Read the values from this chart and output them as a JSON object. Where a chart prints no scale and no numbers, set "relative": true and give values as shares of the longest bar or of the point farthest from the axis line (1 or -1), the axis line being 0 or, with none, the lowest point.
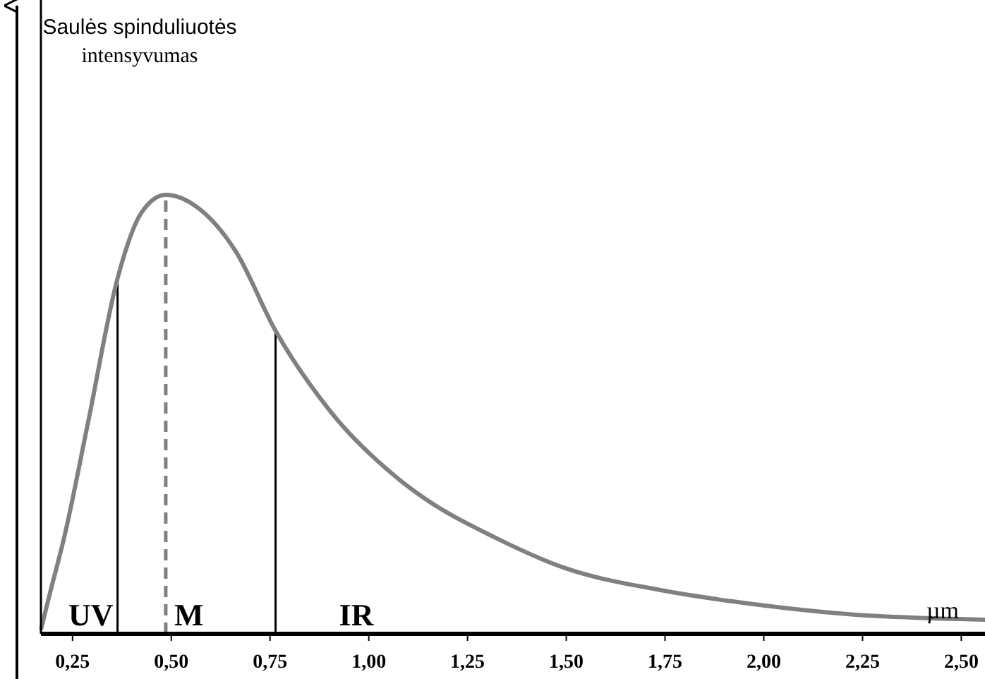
{
  "chart_data": {
    "type": "line",
    "xlabel": "µm",
    "relative": true,
    "xlim": [
      0.17,
      2.56
    ],
    "xticks": [
      {
        "value": 0.25,
        "label": "0,25"
      },
      {
        "value": 0.5,
        "label": "0,50"
      },
      {
        "value": 0.75,
        "label": "0,75"
      },
      {
        "value": 1,
        "label": "1,00"
      },
      {
        "value": 1.25,
        "label": "1,25"
      },
      {
        "value": 1.5,
        "label": "1,50"
      },
      {
        "value": 1.75,
        "label": "1,75"
      },
      {
        "value": 2,
        "label": "2,00"
      },
      {
        "value": 2.25,
        "label": "2,25"
      },
      {
        "value": 2.5,
        "label": "2,50"
      }
    ],
    "x": [
      0.171,
      0.193,
      0.229,
      0.289,
      0.364,
      0.425,
      0.486,
      0.568,
      0.664,
      0.764,
      0.9,
      1.079,
      1.139,
      1.318,
      1.496,
      1.736,
      1.971,
      2.211,
      2.56
    ],
    "series": [
      {
        "color": "#808080",
        "values": [
          0.013,
          0.093,
          0.22,
          0.48,
          0.81,
          0.96,
          1,
          0.97,
          0.87,
          0.69,
          0.51,
          0.35,
          0.31,
          0.22,
          0.15,
          0.1,
          0.068,
          0.045,
          0.032
        ]
      }
    ],
    "ref_lines": [
      {
        "axis": "x",
        "value": 0.364,
        "color": "#000000",
        "line_style": "solid"
      },
      {
        "axis": "x",
        "value": 0.486,
        "color": "#808080",
        "line_style": "dashed"
      },
      {
        "axis": "x",
        "value": 0.764,
        "color": "#000000",
        "line_style": "solid"
      }
    ],
    "annotations": [
      "UV",
      "M",
      "IR",
      "Saulės spinduliuotės\nintensyvumas"
    ]
  }
}
